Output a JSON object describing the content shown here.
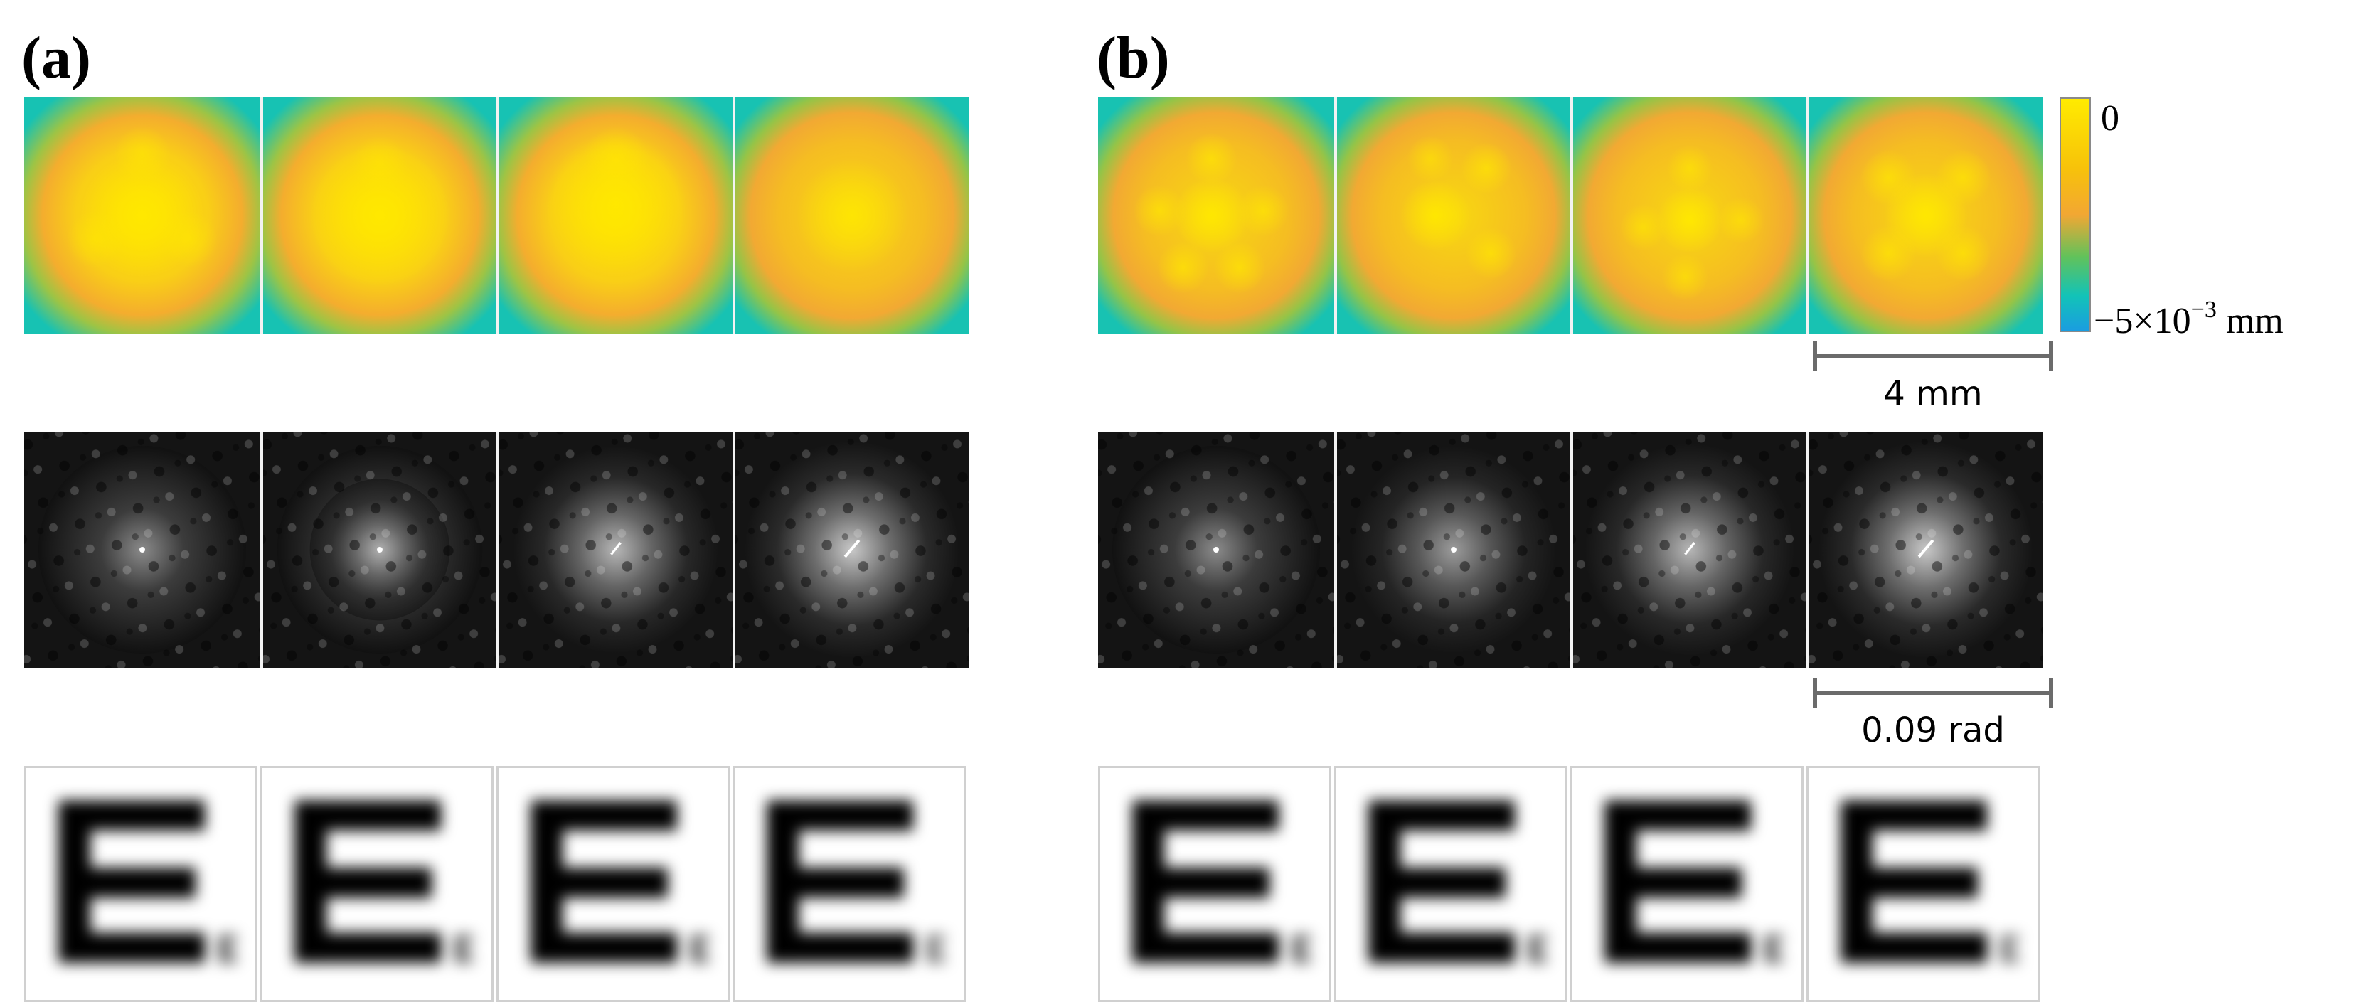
{
  "panels": {
    "a": {
      "label": "(a)"
    },
    "b": {
      "label": "(b)"
    }
  },
  "colorbar": {
    "top_label": "0",
    "bottom_value": "−5×10",
    "bottom_exponent": "−3",
    "bottom_unit": " mm",
    "colors": [
      "#ffeb00",
      "#f7c20a",
      "#f2a733",
      "#62c25a",
      "#12c3b8",
      "#1a9de0"
    ]
  },
  "scalebars": {
    "surface": "4 mm",
    "psf": "0.09 rad"
  },
  "rows": {
    "surface": {
      "description_icon": "height-map",
      "count_per_panel": 4
    },
    "psf": {
      "description_icon": "speckle-map",
      "count_per_panel": 4
    },
    "chart": {
      "letter": "E",
      "small_letter": "E",
      "count_per_panel": 4
    }
  }
}
